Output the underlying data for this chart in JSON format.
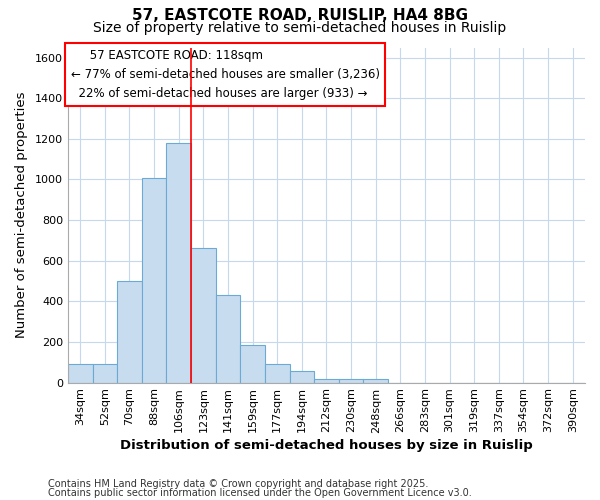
{
  "title1": "57, EASTCOTE ROAD, RUISLIP, HA4 8BG",
  "title2": "Size of property relative to semi-detached houses in Ruislip",
  "xlabel": "Distribution of semi-detached houses by size in Ruislip",
  "ylabel": "Number of semi-detached properties",
  "categories": [
    "34sqm",
    "52sqm",
    "70sqm",
    "88sqm",
    "106sqm",
    "123sqm",
    "141sqm",
    "159sqm",
    "177sqm",
    "194sqm",
    "212sqm",
    "230sqm",
    "248sqm",
    "266sqm",
    "283sqm",
    "301sqm",
    "319sqm",
    "337sqm",
    "354sqm",
    "372sqm",
    "390sqm"
  ],
  "values": [
    90,
    90,
    500,
    1005,
    1180,
    665,
    430,
    185,
    90,
    55,
    20,
    20,
    20,
    0,
    0,
    0,
    0,
    0,
    0,
    0,
    0
  ],
  "bar_color": "#c8dcf0",
  "bar_edgecolor": "#6aaad4",
  "red_line_index": 5,
  "property_line_label": "57 EASTCOTE ROAD: 118sqm",
  "pct_smaller": "77%",
  "count_smaller": "3,236",
  "pct_larger": "22%",
  "count_larger": "933",
  "ylim": [
    0,
    1650
  ],
  "yticks": [
    0,
    200,
    400,
    600,
    800,
    1000,
    1200,
    1400,
    1600
  ],
  "footnote1": "Contains HM Land Registry data © Crown copyright and database right 2025.",
  "footnote2": "Contains public sector information licensed under the Open Government Licence v3.0.",
  "background_color": "#ffffff",
  "plot_bg_color": "#ffffff",
  "grid_color": "#c8d8ec",
  "title_fontsize": 11,
  "subtitle_fontsize": 10,
  "axis_label_fontsize": 9.5,
  "tick_fontsize": 8,
  "annotation_fontsize": 8.5,
  "footnote_fontsize": 7
}
